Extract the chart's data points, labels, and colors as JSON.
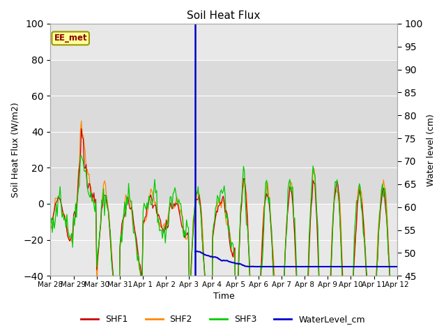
{
  "title": "Soil Heat Flux",
  "ylabel_left": "Soil Heat Flux (W/m2)",
  "ylabel_right": "Water level (cm)",
  "xlabel": "Time",
  "ylim_left": [
    -40,
    100
  ],
  "ylim_right": [
    45,
    100
  ],
  "background_color": "#ffffff",
  "plot_bg_color": "#e8e8e8",
  "shaded_band_low": 0,
  "shaded_band_high": 80,
  "shaded_band_color": "#d3d3d3",
  "annotation_label": "EE_met",
  "annotation_color": "#8B0000",
  "annotation_bg": "#ffff99",
  "annotation_border": "#999900",
  "line_colors": {
    "SHF1": "#cc0000",
    "SHF2": "#ff8800",
    "SHF3": "#00cc00",
    "WaterLevel_cm": "#0000cc"
  },
  "xtick_labels": [
    "Mar 28",
    "Mar 29",
    "Mar 30",
    "Mar 31",
    "Apr 1",
    "Apr 2",
    "Apr 3",
    "Apr 4",
    "Apr 5",
    "Apr 6",
    "Apr 7",
    "Apr 8",
    "Apr 9",
    "Apr 10",
    "Apr 11",
    "Apr 12"
  ],
  "yticks_left": [
    -40,
    -20,
    0,
    20,
    40,
    60,
    80,
    100
  ],
  "yticks_right": [
    45,
    50,
    55,
    60,
    65,
    70,
    75,
    80,
    85,
    90,
    95,
    100
  ],
  "grid_color": "#ffffff",
  "vertical_line_day": 6.25
}
